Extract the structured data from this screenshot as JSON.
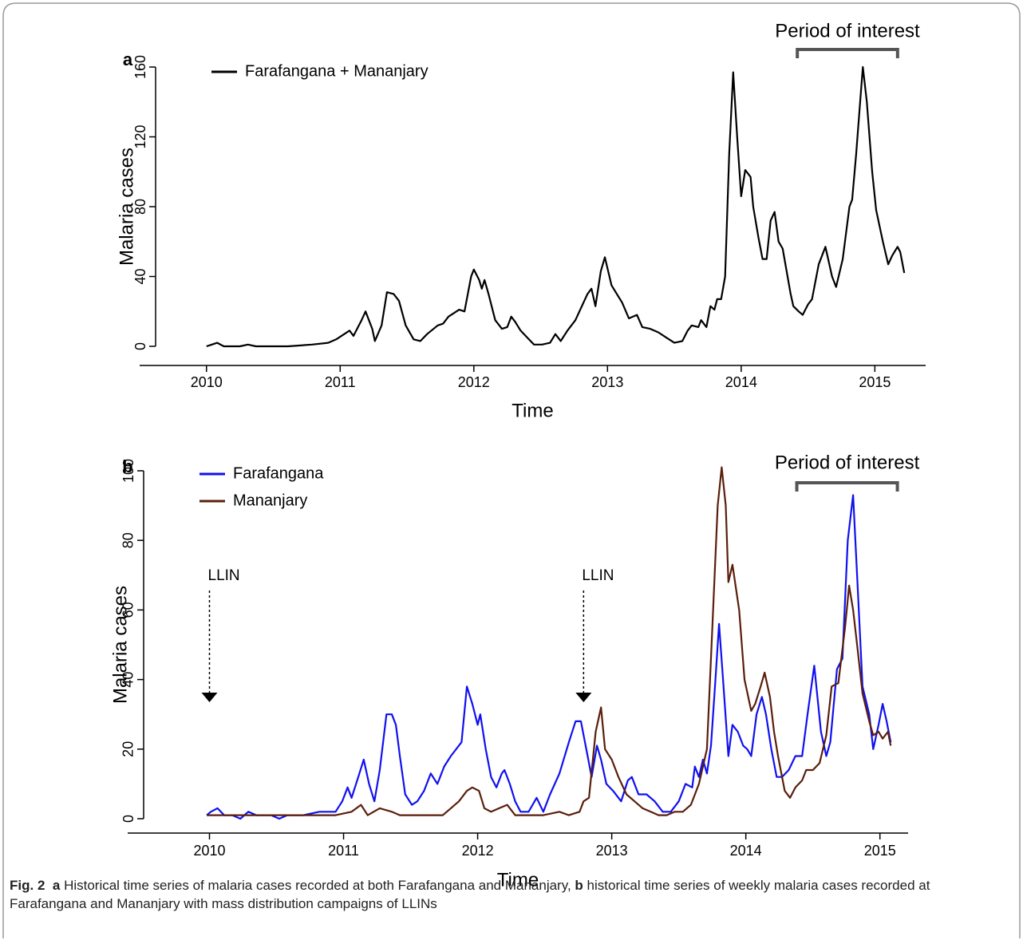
{
  "chart_data": [
    {
      "type": "line",
      "panel": "a",
      "xlabel": "Time",
      "ylabel": "Malaria cases",
      "xlim": [
        2009.5,
        2015.38
      ],
      "xticks": [
        2010,
        2011,
        2012,
        2013,
        2014,
        2015
      ],
      "ylim": [
        0,
        160
      ],
      "yticks": [
        0,
        40,
        80,
        120,
        160
      ],
      "period": {
        "label": "Period of interest",
        "x": [
          2014.42,
          2015.17
        ]
      },
      "series": [
        {
          "name": "Farafangana + Mananjary",
          "color": "#000000",
          "x": [
            2010.0,
            2010.04,
            2010.08,
            2010.13,
            2010.25,
            2010.31,
            2010.37,
            2010.49,
            2010.61,
            2010.79,
            2010.91,
            2010.97,
            2011.07,
            2011.1,
            2011.16,
            2011.19,
            2011.24,
            2011.26,
            2011.31,
            2011.35,
            2011.4,
            2011.44,
            2011.49,
            2011.55,
            2011.6,
            2011.65,
            2011.73,
            2011.77,
            2011.81,
            2011.89,
            2011.93,
            2011.98,
            2012.0,
            2012.04,
            2012.06,
            2012.08,
            2012.11,
            2012.16,
            2012.21,
            2012.25,
            2012.28,
            2012.31,
            2012.35,
            2012.4,
            2012.45,
            2012.51,
            2012.57,
            2012.61,
            2012.65,
            2012.7,
            2012.76,
            2012.85,
            2012.88,
            2012.91,
            2012.95,
            2012.98,
            2013.03,
            2013.07,
            2013.11,
            2013.16,
            2013.22,
            2013.26,
            2013.32,
            2013.38,
            2013.44,
            2013.5,
            2013.56,
            2013.6,
            2013.63,
            2013.68,
            2013.7,
            2013.74,
            2013.77,
            2013.8,
            2013.82,
            2013.85,
            2013.88,
            2013.91,
            2013.94,
            2013.97,
            2014.0,
            2014.03,
            2014.07,
            2014.09,
            2014.13,
            2014.16,
            2014.19,
            2014.22,
            2014.25,
            2014.28,
            2014.31,
            2014.37,
            2014.39,
            2014.43,
            2014.46,
            2014.5,
            2014.53,
            2014.58,
            2014.63,
            2014.68,
            2014.71,
            2014.76,
            2014.81,
            2014.83,
            2014.86,
            2014.89,
            2014.91,
            2014.94,
            2014.98,
            2015.01,
            2015.06,
            2015.1,
            2015.13,
            2015.17,
            2015.19,
            2015.22
          ],
          "values": [
            0,
            1,
            2,
            0,
            0,
            1,
            0,
            0,
            0,
            1,
            2,
            4,
            9,
            6,
            15,
            20,
            10,
            3,
            12,
            31,
            30,
            26,
            12,
            4,
            3,
            7,
            12,
            13,
            17,
            21,
            20,
            40,
            44,
            38,
            33,
            38,
            30,
            15,
            10,
            11,
            17,
            14,
            9,
            5,
            1,
            1,
            2,
            7,
            3,
            9,
            15,
            30,
            33,
            23,
            43,
            51,
            35,
            30,
            25,
            16,
            18,
            11,
            10,
            8,
            5,
            2,
            3,
            9,
            12,
            11,
            15,
            11,
            23,
            21,
            27,
            27,
            40,
            110,
            157,
            120,
            86,
            101,
            97,
            80,
            62,
            50,
            50,
            72,
            77,
            60,
            56,
            30,
            23,
            20,
            18,
            24,
            27,
            47,
            57,
            40,
            34,
            50,
            80,
            84,
            110,
            140,
            160,
            140,
            100,
            78,
            60,
            47,
            52,
            57,
            54,
            42
          ]
        }
      ]
    },
    {
      "type": "line",
      "panel": "b",
      "xlabel": "Time",
      "ylabel": "Malaria cases",
      "xlim": [
        2009.39,
        2015.21
      ],
      "xticks": [
        2010,
        2011,
        2012,
        2013,
        2014,
        2015
      ],
      "ylim": [
        0,
        100
      ],
      "yticks": [
        0,
        20,
        40,
        60,
        80,
        100
      ],
      "period": {
        "label": "Period of interest",
        "x": [
          2014.38,
          2015.13
        ]
      },
      "annotations": [
        {
          "text": "LLIN",
          "x": 2010.0
        },
        {
          "text": "LLIN",
          "x": 2012.79
        }
      ],
      "series": [
        {
          "name": "Farafangana",
          "color": "#1010f0",
          "x": [
            2009.98,
            2010.01,
            2010.06,
            2010.11,
            2010.17,
            2010.23,
            2010.29,
            2010.35,
            2010.46,
            2010.52,
            2010.58,
            2010.7,
            2010.82,
            2010.94,
            2010.99,
            2011.03,
            2011.06,
            2011.11,
            2011.15,
            2011.19,
            2011.23,
            2011.27,
            2011.32,
            2011.36,
            2011.39,
            2011.42,
            2011.46,
            2011.51,
            2011.55,
            2011.6,
            2011.65,
            2011.7,
            2011.75,
            2011.8,
            2011.88,
            2011.92,
            2011.96,
            2012.0,
            2012.02,
            2012.06,
            2012.1,
            2012.14,
            2012.18,
            2012.2,
            2012.24,
            2012.28,
            2012.32,
            2012.38,
            2012.44,
            2012.49,
            2012.54,
            2012.61,
            2012.68,
            2012.73,
            2012.77,
            2012.82,
            2012.85,
            2012.89,
            2012.92,
            2012.96,
            2013.01,
            2013.07,
            2013.12,
            2013.15,
            2013.2,
            2013.26,
            2013.32,
            2013.38,
            2013.44,
            2013.5,
            2013.55,
            2013.6,
            2013.62,
            2013.65,
            2013.68,
            2013.71,
            2013.74,
            2013.77,
            2013.8,
            2013.83,
            2013.87,
            2013.9,
            2013.94,
            2013.98,
            2014.01,
            2014.04,
            2014.08,
            2014.12,
            2014.15,
            2014.19,
            2014.23,
            2014.27,
            2014.32,
            2014.37,
            2014.42,
            2014.46,
            2014.51,
            2014.56,
            2014.6,
            2014.63,
            2014.68,
            2014.72,
            2014.76,
            2014.8,
            2014.83,
            2014.87,
            2014.92,
            2014.95,
            2014.99,
            2015.02,
            2015.05,
            2015.08
          ],
          "values": [
            1,
            2,
            3,
            1,
            1,
            0,
            2,
            1,
            1,
            0,
            1,
            1,
            2,
            2,
            5,
            9,
            6,
            12,
            17,
            10,
            5,
            14,
            30,
            30,
            27,
            18,
            7,
            4,
            5,
            8,
            13,
            10,
            15,
            18,
            22,
            38,
            33,
            27,
            30,
            20,
            12,
            9,
            13,
            14,
            10,
            5,
            2,
            2,
            6,
            2,
            7,
            13,
            22,
            28,
            28,
            18,
            12,
            21,
            17,
            10,
            8,
            5,
            11,
            12,
            7,
            7,
            5,
            2,
            2,
            5,
            10,
            9,
            15,
            12,
            17,
            13,
            21,
            38,
            56,
            40,
            18,
            27,
            25,
            21,
            20,
            18,
            30,
            35,
            30,
            20,
            12,
            12,
            14,
            18,
            18,
            30,
            44,
            25,
            18,
            22,
            43,
            46,
            80,
            93,
            70,
            38,
            30,
            20,
            27,
            33,
            28,
            22
          ]
        },
        {
          "name": "Mananjary",
          "color": "#5a1e0c",
          "x": [
            2009.98,
            2010.23,
            2010.52,
            2010.82,
            2010.94,
            2011.06,
            2011.13,
            2011.18,
            2011.27,
            2011.36,
            2011.42,
            2011.6,
            2011.74,
            2011.8,
            2011.86,
            2011.92,
            2011.96,
            2012.01,
            2012.05,
            2012.1,
            2012.16,
            2012.22,
            2012.28,
            2012.49,
            2012.61,
            2012.68,
            2012.76,
            2012.79,
            2012.83,
            2012.88,
            2012.92,
            2012.95,
            2013.0,
            2013.05,
            2013.11,
            2013.17,
            2013.23,
            2013.29,
            2013.35,
            2013.41,
            2013.47,
            2013.53,
            2013.59,
            2013.65,
            2013.71,
            2013.75,
            2013.79,
            2013.82,
            2013.85,
            2013.87,
            2013.9,
            2013.95,
            2013.99,
            2014.04,
            2014.07,
            2014.11,
            2014.14,
            2014.18,
            2014.21,
            2014.24,
            2014.29,
            2014.33,
            2014.37,
            2014.42,
            2014.45,
            2014.5,
            2014.55,
            2014.6,
            2014.64,
            2014.69,
            2014.74,
            2014.77,
            2014.8,
            2014.83,
            2014.87,
            2014.92,
            2014.95,
            2014.99,
            2015.02,
            2015.06,
            2015.08
          ],
          "values": [
            1,
            1,
            1,
            1,
            1,
            2,
            4,
            1,
            3,
            2,
            1,
            1,
            1,
            3,
            5,
            8,
            9,
            8,
            3,
            2,
            3,
            4,
            1,
            1,
            2,
            1,
            2,
            5,
            6,
            25,
            32,
            20,
            17,
            12,
            7,
            5,
            3,
            2,
            1,
            1,
            2,
            2,
            4,
            10,
            20,
            55,
            90,
            101,
            90,
            68,
            73,
            60,
            40,
            31,
            33,
            38,
            42,
            35,
            25,
            18,
            8,
            6,
            9,
            11,
            14,
            14,
            16,
            24,
            38,
            39,
            55,
            67,
            60,
            50,
            36,
            28,
            24,
            25,
            23,
            25,
            21
          ]
        }
      ]
    }
  ],
  "caption": {
    "label": "Fig. 2",
    "items": [
      {
        "letter": "a",
        "text": "Historical time series of malaria cases recorded at both Farafangana and Mananjary,"
      },
      {
        "letter": "b",
        "text": "historical time series of weekly malaria cases recorded at Farafangana and Mananjary with mass distribution campaigns of LLINs"
      }
    ]
  }
}
